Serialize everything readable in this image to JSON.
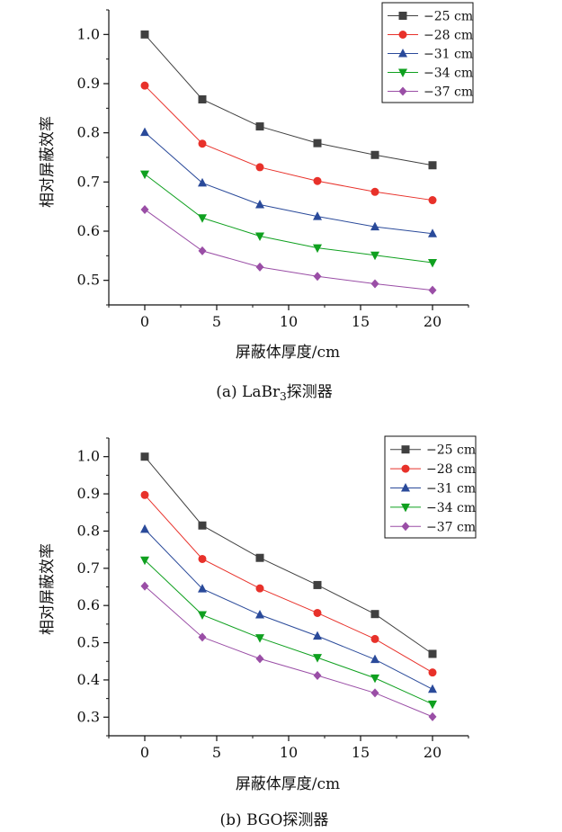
{
  "chart_data": [
    {
      "type": "line",
      "caption_prefix": "(a) LaBr",
      "caption_sub": "3",
      "caption_suffix": "探测器",
      "xlabel": "屏蔽体厚度/cm",
      "ylabel": "相对屏蔽效率",
      "x": [
        0,
        4,
        8,
        12,
        16,
        20
      ],
      "xlim": [
        -2.5,
        22.5
      ],
      "ylim": [
        0.45,
        1.05
      ],
      "xticks": [
        0,
        5,
        10,
        15,
        20
      ],
      "yticks": [
        0.5,
        0.6,
        0.7,
        0.8,
        0.9,
        1.0
      ],
      "ytick_labels": [
        "0.5",
        "0.6",
        "0.7",
        "0.8",
        "0.9",
        "1.0"
      ],
      "legend_position": "top-right",
      "series": [
        {
          "name": "−25 cm",
          "color": "#404040",
          "marker": "square",
          "values": [
            1.0,
            0.868,
            0.813,
            0.779,
            0.755,
            0.734
          ]
        },
        {
          "name": "−28 cm",
          "color": "#e8312a",
          "marker": "circle",
          "values": [
            0.896,
            0.778,
            0.73,
            0.702,
            0.68,
            0.663
          ]
        },
        {
          "name": "−31 cm",
          "color": "#2a4a9a",
          "marker": "triangle-up",
          "values": [
            0.801,
            0.698,
            0.654,
            0.63,
            0.609,
            0.595
          ]
        },
        {
          "name": "−34 cm",
          "color": "#0fa01f",
          "marker": "triangle-down",
          "values": [
            0.716,
            0.627,
            0.59,
            0.566,
            0.551,
            0.536
          ]
        },
        {
          "name": "−37 cm",
          "color": "#9a4ea6",
          "marker": "diamond",
          "values": [
            0.644,
            0.56,
            0.527,
            0.508,
            0.493,
            0.48
          ]
        }
      ]
    },
    {
      "type": "line",
      "caption_prefix": "(b) BGO探测器",
      "caption_sub": "",
      "caption_suffix": "",
      "xlabel": "屏蔽体厚度/cm",
      "ylabel": "相对屏蔽效率",
      "x": [
        0,
        4,
        8,
        12,
        16,
        20
      ],
      "xlim": [
        -2.5,
        22.5
      ],
      "ylim": [
        0.25,
        1.05
      ],
      "xticks": [
        0,
        5,
        10,
        15,
        20
      ],
      "yticks": [
        0.3,
        0.4,
        0.5,
        0.6,
        0.7,
        0.8,
        0.9,
        1.0
      ],
      "ytick_labels": [
        "0.3",
        "0.4",
        "0.5",
        "0.6",
        "0.7",
        "0.8",
        "0.9",
        "1.0"
      ],
      "legend_position": "top-right",
      "series": [
        {
          "name": "−25 cm",
          "color": "#404040",
          "marker": "square",
          "values": [
            1.0,
            0.815,
            0.728,
            0.655,
            0.577,
            0.47
          ]
        },
        {
          "name": "−28 cm",
          "color": "#e8312a",
          "marker": "circle",
          "values": [
            0.897,
            0.725,
            0.646,
            0.58,
            0.51,
            0.42
          ]
        },
        {
          "name": "−31 cm",
          "color": "#2a4a9a",
          "marker": "triangle-up",
          "values": [
            0.805,
            0.645,
            0.575,
            0.518,
            0.455,
            0.375
          ]
        },
        {
          "name": "−34 cm",
          "color": "#0fa01f",
          "marker": "triangle-down",
          "values": [
            0.722,
            0.575,
            0.513,
            0.46,
            0.405,
            0.335
          ]
        },
        {
          "name": "−37 cm",
          "color": "#9a4ea6",
          "marker": "diamond",
          "values": [
            0.652,
            0.515,
            0.457,
            0.412,
            0.365,
            0.301
          ]
        }
      ]
    }
  ]
}
